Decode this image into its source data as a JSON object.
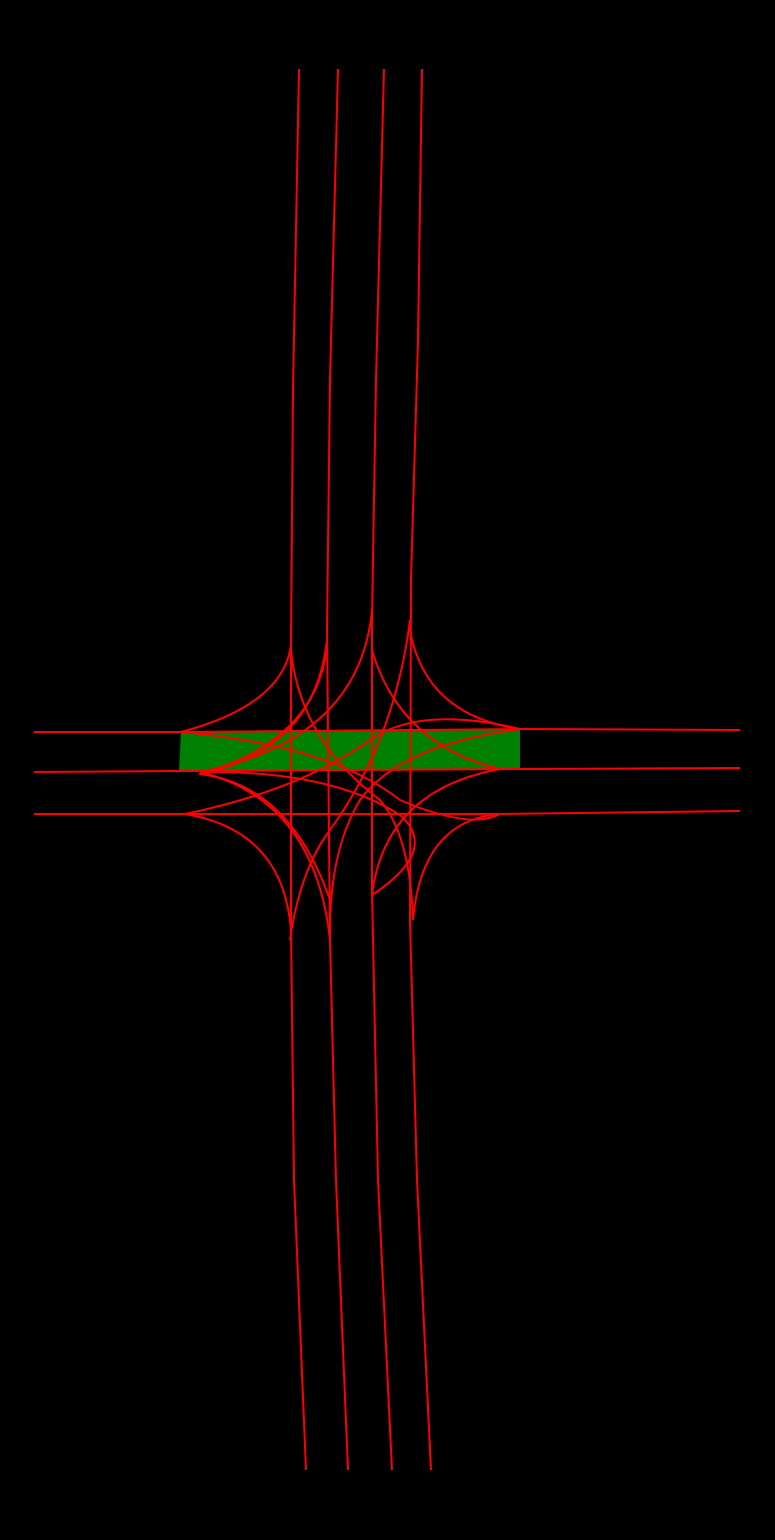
{
  "background_color": "#000000",
  "lane_color": "#ff0000",
  "crossing_fill_color": "#008000",
  "elements": {
    "crossing_zone": "green-crosswalk-area",
    "lanes": "red-lane-centerlines"
  }
}
